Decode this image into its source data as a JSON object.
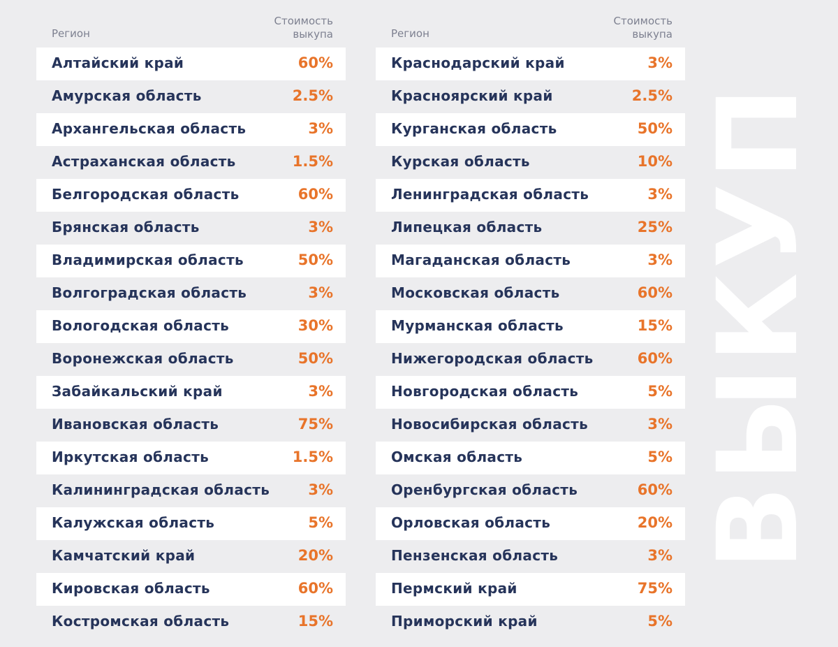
{
  "headers": {
    "region": "Регион",
    "price": "Стоимость\nвыкупа"
  },
  "title": "ВЫКУП",
  "colors": {
    "region_text": "#26345a",
    "price_text": "#e8742a",
    "header_text": "#7d8090"
  },
  "left": [
    {
      "region": "Алтайский край",
      "price": "60%"
    },
    {
      "region": "Амурская область",
      "price": "2.5%"
    },
    {
      "region": "Архангельская область",
      "price": "3%"
    },
    {
      "region": "Астраханская область",
      "price": "1.5%"
    },
    {
      "region": "Белгородская область",
      "price": "60%"
    },
    {
      "region": "Брянская область",
      "price": "3%"
    },
    {
      "region": "Владимирская область",
      "price": "50%"
    },
    {
      "region": "Волгоградская область",
      "price": "3%"
    },
    {
      "region": "Вологодская область",
      "price": "30%"
    },
    {
      "region": "Воронежская область",
      "price": "50%"
    },
    {
      "region": "Забайкальский край",
      "price": "3%"
    },
    {
      "region": "Ивановская область",
      "price": "75%"
    },
    {
      "region": "Иркутская область",
      "price": "1.5%"
    },
    {
      "region": "Калининградская область",
      "price": "3%"
    },
    {
      "region": "Калужская область",
      "price": "5%"
    },
    {
      "region": "Камчатский край",
      "price": "20%"
    },
    {
      "region": "Кировская область",
      "price": "60%"
    },
    {
      "region": "Костромская область",
      "price": "15%"
    }
  ],
  "right": [
    {
      "region": "Краснодарский край",
      "price": "3%"
    },
    {
      "region": "Красноярский край",
      "price": "2.5%"
    },
    {
      "region": "Курганская область",
      "price": "50%"
    },
    {
      "region": "Курская область",
      "price": "10%"
    },
    {
      "region": "Ленинградская область",
      "price": "3%"
    },
    {
      "region": "Липецкая область",
      "price": "25%"
    },
    {
      "region": "Магаданская область",
      "price": "3%"
    },
    {
      "region": "Московская область",
      "price": "60%"
    },
    {
      "region": "Мурманская область",
      "price": "15%"
    },
    {
      "region": "Нижегородская область",
      "price": "60%"
    },
    {
      "region": "Новгородская область",
      "price": "5%"
    },
    {
      "region": "Новосибирская область",
      "price": "3%"
    },
    {
      "region": "Омская область",
      "price": "5%"
    },
    {
      "region": "Оренбургская область",
      "price": "60%"
    },
    {
      "region": "Орловская область",
      "price": "20%"
    },
    {
      "region": "Пензенская область",
      "price": "3%"
    },
    {
      "region": "Пермский край",
      "price": "75%"
    },
    {
      "region": "Приморский край",
      "price": "5%"
    }
  ]
}
